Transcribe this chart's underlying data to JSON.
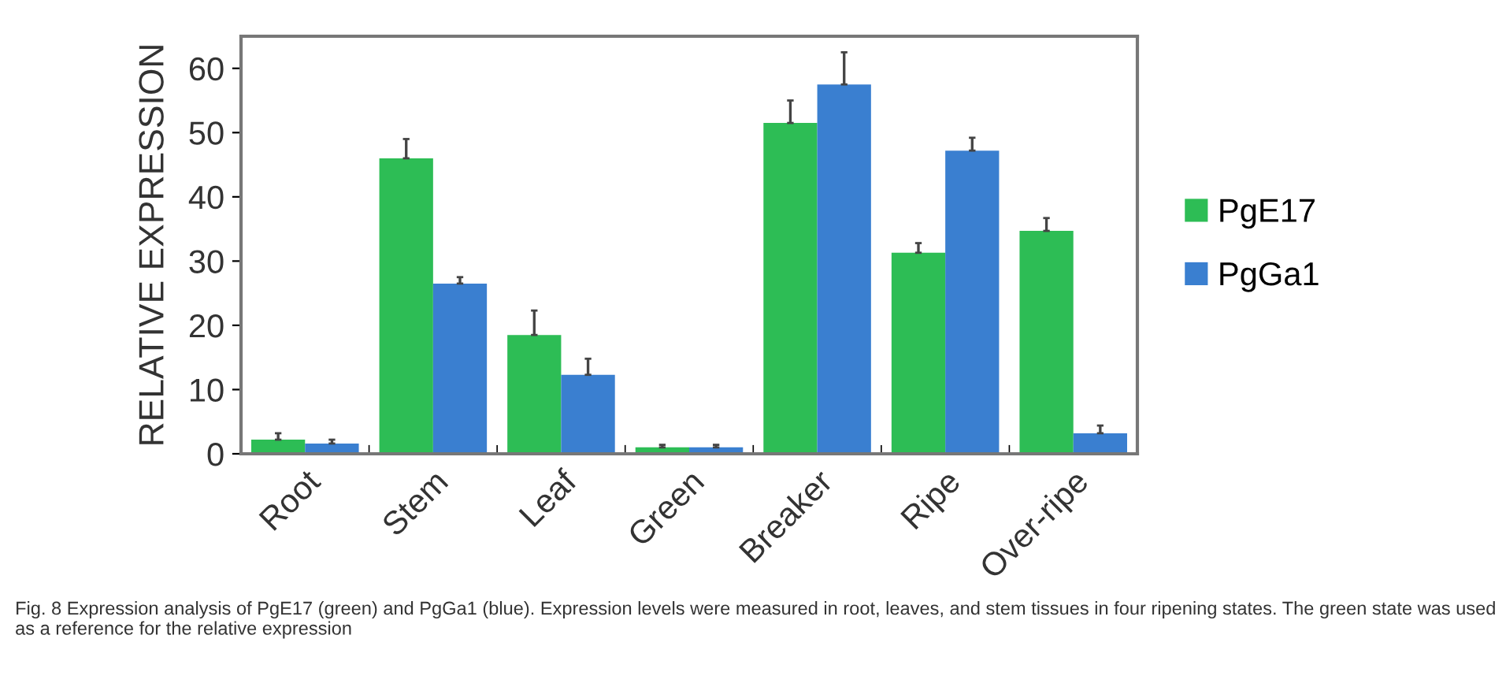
{
  "chart_data": {
    "type": "bar",
    "ylabel": "RELATIVE EXPRESSION",
    "categories": [
      "Root",
      "Stem",
      "Leaf",
      "Green",
      "Breaker",
      "Ripe",
      "Over-ripe"
    ],
    "series": [
      {
        "name": "PgE17",
        "color": "#2dbd55",
        "values": [
          2.2,
          46,
          18.5,
          1.0,
          51.5,
          31.3,
          34.7
        ],
        "errors": [
          1.0,
          3,
          3.8,
          0.4,
          3.5,
          1.5,
          2
        ]
      },
      {
        "name": "PgGa1",
        "color": "#3a7fd0",
        "values": [
          1.6,
          26.5,
          12.3,
          1.0,
          57.5,
          47.2,
          3.2
        ],
        "errors": [
          0.6,
          1,
          2.5,
          0.4,
          5,
          2,
          1.2
        ]
      }
    ],
    "ylim": [
      0,
      65
    ],
    "yticks": [
      0,
      10,
      20,
      30,
      40,
      50,
      60
    ],
    "grid": false,
    "legend": "right",
    "annotations": [
      "Fig. 8 Expression analysis of PgE17 (green) and PgGa1 (blue). Expression levels were measured in root, leaves, and stem tissues in four ripening states. The green state was used as a reference for the relative expression"
    ]
  }
}
